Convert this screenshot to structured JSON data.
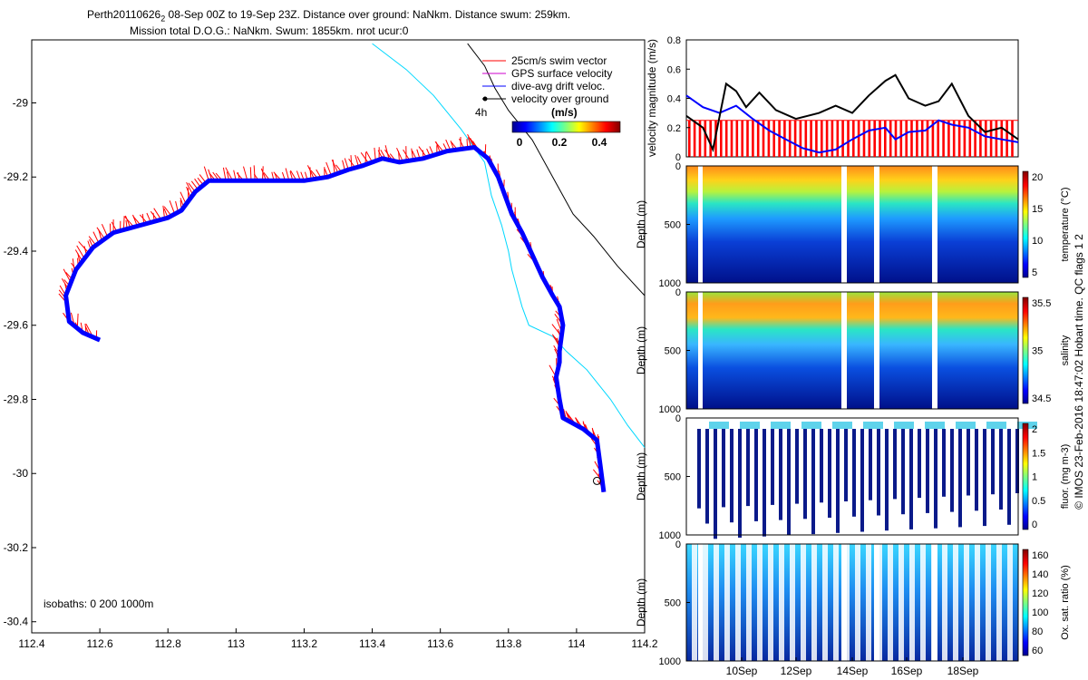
{
  "header": {
    "line1_pre": "Perth20110626",
    "line1_sub": "2",
    "line1_post": " 08-Sep 00Z to 19-Sep 23Z. Distance over ground: NaNkm. Distance swum: 259km.",
    "line2": "Mission total D.O.G.: NaNkm. Swum: 1855km. nrot ucur:0"
  },
  "side_label": "© IMOS 23-Feb-2016 18:47:02 Hobart time. QC flags 1  2",
  "colors": {
    "swim_vector": "#ff0000",
    "gps_surface": "#cc00cc",
    "dive_avg": "#0000ff",
    "over_ground": "#000000",
    "coast_isobath": "#00d8ff",
    "deep_isobath": "#000000"
  },
  "chart_data": [
    {
      "type": "scatter",
      "xlim": [
        112.4,
        114.2
      ],
      "ylim": [
        -30.43,
        -28.83
      ],
      "x_ticks": [
        "112.4",
        "112.6",
        "112.8",
        "113",
        "113.2",
        "113.4",
        "113.6",
        "113.8",
        "114",
        "114.2"
      ],
      "y_ticks": [
        "-29",
        "-29.2",
        "-29.4",
        "-29.6",
        "-29.8",
        "-30",
        "-30.2",
        "-30.4"
      ],
      "legend": [
        "25cm/s swim vector",
        "GPS surface velocity",
        "dive-avg drift veloc.",
        "velocity over ground"
      ],
      "legend_note": "4h",
      "colorbar_title": "(m/s)",
      "colorbar_ticks": [
        "0",
        "0.2",
        "0.4"
      ],
      "annotation": "isobaths: 0   200  1000m",
      "track": [
        [
          114.08,
          -30.05
        ],
        [
          114.07,
          -29.98
        ],
        [
          114.06,
          -29.91
        ],
        [
          114.02,
          -29.88
        ],
        [
          113.96,
          -29.85
        ],
        [
          113.95,
          -29.8
        ],
        [
          113.94,
          -29.74
        ],
        [
          113.95,
          -29.7
        ],
        [
          113.95,
          -29.67
        ],
        [
          113.96,
          -29.6
        ],
        [
          113.95,
          -29.55
        ],
        [
          113.93,
          -29.52
        ],
        [
          113.9,
          -29.47
        ],
        [
          113.87,
          -29.41
        ],
        [
          113.84,
          -29.35
        ],
        [
          113.81,
          -29.3
        ],
        [
          113.79,
          -29.25
        ],
        [
          113.77,
          -29.2
        ],
        [
          113.74,
          -29.15
        ],
        [
          113.7,
          -29.12
        ],
        [
          113.62,
          -29.13
        ],
        [
          113.55,
          -29.15
        ],
        [
          113.48,
          -29.16
        ],
        [
          113.43,
          -29.15
        ],
        [
          113.37,
          -29.17
        ],
        [
          113.33,
          -29.18
        ],
        [
          113.27,
          -29.2
        ],
        [
          113.2,
          -29.21
        ],
        [
          113.1,
          -29.21
        ],
        [
          113.0,
          -29.21
        ],
        [
          112.92,
          -29.21
        ],
        [
          112.88,
          -29.24
        ],
        [
          112.84,
          -29.29
        ],
        [
          112.8,
          -29.31
        ],
        [
          112.72,
          -29.33
        ],
        [
          112.64,
          -29.35
        ],
        [
          112.58,
          -29.39
        ],
        [
          112.53,
          -29.45
        ],
        [
          112.5,
          -29.52
        ],
        [
          112.51,
          -29.59
        ],
        [
          112.55,
          -29.62
        ],
        [
          112.6,
          -29.64
        ]
      ],
      "isobath_shallow": [
        [
          113.4,
          -28.84
        ],
        [
          113.5,
          -28.91
        ],
        [
          113.58,
          -28.98
        ],
        [
          113.66,
          -29.07
        ],
        [
          113.73,
          -29.16
        ],
        [
          113.75,
          -29.25
        ],
        [
          113.78,
          -29.33
        ],
        [
          113.8,
          -29.4
        ],
        [
          113.81,
          -29.45
        ],
        [
          113.84,
          -29.55
        ],
        [
          113.86,
          -29.6
        ],
        [
          113.93,
          -29.63
        ],
        [
          113.97,
          -29.67
        ],
        [
          114.03,
          -29.72
        ],
        [
          114.1,
          -29.8
        ],
        [
          114.15,
          -29.87
        ],
        [
          114.2,
          -29.93
        ]
      ],
      "isobath_deep": [
        [
          113.68,
          -28.84
        ],
        [
          113.73,
          -28.9
        ],
        [
          113.76,
          -28.96
        ],
        [
          113.8,
          -29.02
        ],
        [
          113.87,
          -29.1
        ],
        [
          113.93,
          -29.2
        ],
        [
          113.99,
          -29.3
        ],
        [
          114.05,
          -29.36
        ],
        [
          114.12,
          -29.44
        ],
        [
          114.18,
          -29.5
        ],
        [
          114.2,
          -29.52
        ]
      ],
      "start_marker": [
        114.06,
        -30.02
      ]
    },
    {
      "type": "line",
      "ylabel": "velocity magnitude (m/s)",
      "ylim": [
        0,
        0.8
      ],
      "y_ticks": [
        "0",
        "0.2",
        "0.4",
        "0.6",
        "0.8"
      ],
      "series": [
        {
          "color": "#000000",
          "points": [
            [
              0,
              0.28
            ],
            [
              0.05,
              0.2
            ],
            [
              0.08,
              0.05
            ],
            [
              0.12,
              0.5
            ],
            [
              0.15,
              0.45
            ],
            [
              0.18,
              0.34
            ],
            [
              0.22,
              0.44
            ],
            [
              0.27,
              0.32
            ],
            [
              0.33,
              0.26
            ],
            [
              0.4,
              0.3
            ],
            [
              0.45,
              0.35
            ],
            [
              0.5,
              0.3
            ],
            [
              0.55,
              0.42
            ],
            [
              0.6,
              0.52
            ],
            [
              0.63,
              0.56
            ],
            [
              0.67,
              0.4
            ],
            [
              0.72,
              0.35
            ],
            [
              0.76,
              0.38
            ],
            [
              0.8,
              0.5
            ],
            [
              0.85,
              0.28
            ],
            [
              0.9,
              0.17
            ],
            [
              0.95,
              0.2
            ],
            [
              1,
              0.12
            ]
          ]
        },
        {
          "color": "#0000ff",
          "points": [
            [
              0,
              0.42
            ],
            [
              0.05,
              0.34
            ],
            [
              0.1,
              0.3
            ],
            [
              0.15,
              0.35
            ],
            [
              0.2,
              0.26
            ],
            [
              0.25,
              0.18
            ],
            [
              0.3,
              0.12
            ],
            [
              0.35,
              0.06
            ],
            [
              0.4,
              0.03
            ],
            [
              0.45,
              0.05
            ],
            [
              0.5,
              0.12
            ],
            [
              0.55,
              0.18
            ],
            [
              0.6,
              0.2
            ],
            [
              0.63,
              0.12
            ],
            [
              0.67,
              0.17
            ],
            [
              0.72,
              0.18
            ],
            [
              0.76,
              0.25
            ],
            [
              0.8,
              0.22
            ],
            [
              0.85,
              0.2
            ],
            [
              0.9,
              0.14
            ],
            [
              0.95,
              0.12
            ],
            [
              1,
              0.1
            ]
          ]
        }
      ],
      "swim_bar_value": 0.25
    },
    {
      "type": "heatmap",
      "ylabel": "Depth (m)",
      "y_ticks": [
        "0",
        "500",
        "1000"
      ],
      "colorbar_label": "temperature (°C)",
      "colorbar_ticks": [
        "5",
        "10",
        "15",
        "20"
      ]
    },
    {
      "type": "heatmap",
      "ylabel": "Depth (m)",
      "y_ticks": [
        "0",
        "500",
        "1000"
      ],
      "colorbar_label": "salinity",
      "colorbar_ticks": [
        "34.5",
        "35",
        "35.5"
      ]
    },
    {
      "type": "heatmap",
      "ylabel": "Depth (m)",
      "y_ticks": [
        "0",
        "500",
        "1000"
      ],
      "colorbar_label": "fluor. (mg m-3)",
      "colorbar_ticks": [
        "0",
        "0.5",
        "1",
        "1.5",
        "2"
      ]
    },
    {
      "type": "heatmap",
      "ylabel": "Depth (m)",
      "y_ticks": [
        "0",
        "500",
        "1000"
      ],
      "colorbar_label": "Ox. sat. ratio (%)",
      "colorbar_ticks": [
        "60",
        "80",
        "100",
        "120",
        "140",
        "160"
      ],
      "x_ticks": [
        "10Sep",
        "12Sep",
        "14Sep",
        "16Sep",
        "18Sep"
      ]
    }
  ]
}
